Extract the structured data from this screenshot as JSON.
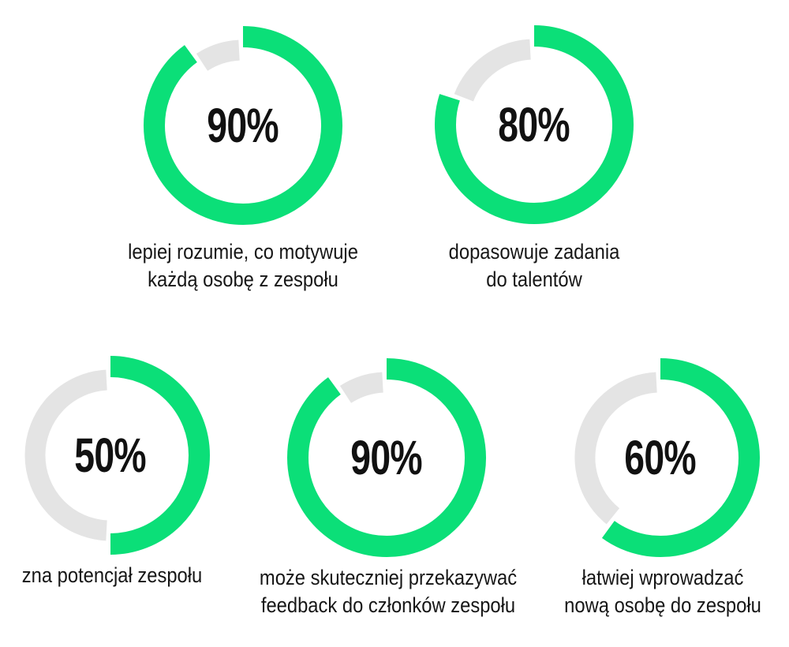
{
  "colors": {
    "progress": "#0BDF78",
    "track": "#E4E4E4",
    "text": "#111111",
    "background": "#FFFFFF"
  },
  "chart_data": [
    {
      "type": "pie",
      "variant": "donut_progress",
      "value": 90,
      "label": "90%",
      "caption": "lepiej rozumie, co motywuje każdą osobę z zespołu",
      "caption_lines": [
        "lepiej rozumie, co motywuje",
        "każdą osobę z zespołu"
      ],
      "start_angle_deg": 0,
      "direction": "clockwise"
    },
    {
      "type": "pie",
      "variant": "donut_progress",
      "value": 80,
      "label": "80%",
      "caption": "dopasowuje zadania do talentów",
      "caption_lines": [
        "dopasowuje zadania",
        "do talentów"
      ],
      "start_angle_deg": 0,
      "direction": "clockwise"
    },
    {
      "type": "pie",
      "variant": "donut_progress",
      "value": 50,
      "label": "50%",
      "caption": "zna potencjał zespołu",
      "caption_lines": [
        "zna potencjał zespołu"
      ],
      "start_angle_deg": 0,
      "direction": "clockwise"
    },
    {
      "type": "pie",
      "variant": "donut_progress",
      "value": 90,
      "label": "90%",
      "caption": "może skuteczniej przekazywać feedback do członków zespołu",
      "caption_lines": [
        "może skuteczniej przekazywać",
        "feedback do członków zespołu"
      ],
      "start_angle_deg": 0,
      "direction": "clockwise"
    },
    {
      "type": "pie",
      "variant": "donut_progress",
      "value": 60,
      "label": "60%",
      "caption": "łatwiej wprowadzać nową osobę do zespołu",
      "caption_lines": [
        "łatwiej wprowadzać",
        "nową osobę do zespołu"
      ],
      "start_angle_deg": 0,
      "direction": "clockwise"
    }
  ]
}
